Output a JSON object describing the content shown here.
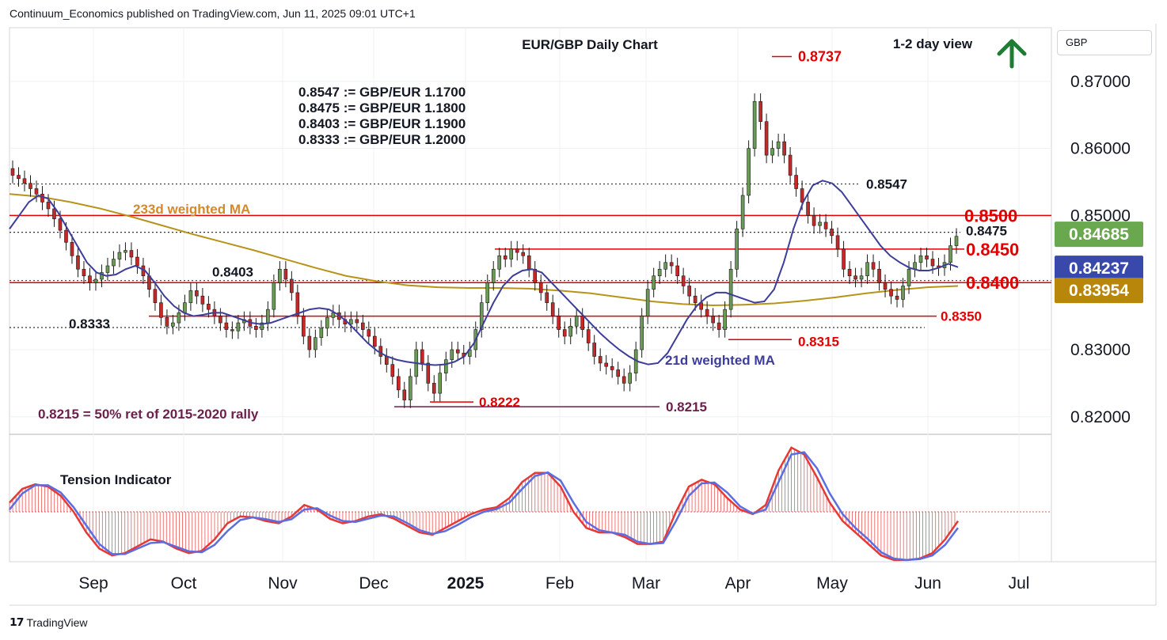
{
  "publisher": "Continuum_Economics published on TradingView.com, Jun 11, 2025 09:01 UTC+1",
  "brand": "TradingView",
  "currency_selector": "GBP",
  "colors": {
    "up": "#6a9a55",
    "down": "#c62828",
    "ma21": "#3d3d9a",
    "ma233": "#b8931a",
    "level": "#e00000",
    "dotted": "#333333",
    "tension_fill": "#e53935",
    "tension_fast": "#e53935",
    "tension_slow": "#5b6de0",
    "arrow": "#1e7d32"
  },
  "icons": {
    "view_arrow": "up-arrow-icon",
    "brand_logo": "tradingview-logo-icon"
  },
  "chart_data": {
    "type": "candlestick",
    "title": "EUR/GBP Daily Chart",
    "view_label": "1-2 day view",
    "x_ticks": [
      "Sep",
      "Oct",
      "Nov",
      "Dec",
      "2025",
      "Feb",
      "Mar",
      "Apr",
      "May",
      "Jun",
      "Jul"
    ],
    "y_ticks": [
      "0.87000",
      "0.86000",
      "0.85000",
      "0.83000",
      "0.82000"
    ],
    "ylim": [
      0.8175,
      0.878
    ],
    "conversions": [
      "0.8547 := GBP/EUR 1.1700",
      "0.8475 := GBP/EUR 1.1800",
      "0.8403 := GBP/EUR 1.1900",
      "0.8333 := GBP/EUR 1.2000"
    ],
    "resistance_levels": [
      {
        "label": "0.8737",
        "value": 0.8737
      },
      {
        "label": "0.8547",
        "value": 0.8547
      },
      {
        "label": "0.8500",
        "value": 0.85
      },
      {
        "label": "0.8475",
        "value": 0.8475
      },
      {
        "label": "0.8450",
        "value": 0.845
      }
    ],
    "support_levels": [
      {
        "label": "0.8403",
        "value": 0.8403
      },
      {
        "label": "0.8400",
        "value": 0.84
      },
      {
        "label": "0.8350",
        "value": 0.835
      },
      {
        "label": "0.8333",
        "value": 0.8333
      },
      {
        "label": "0.8315",
        "value": 0.8315
      },
      {
        "label": "0.8222",
        "value": 0.8222
      },
      {
        "label": "0.8215",
        "value": 0.8215
      }
    ],
    "price_badges": [
      {
        "label": "0.84685",
        "value": 0.84685,
        "color": "#6aa84f"
      },
      {
        "label": "0.84237",
        "value": 0.84237,
        "color": "#3949ab"
      },
      {
        "label": "0.83954",
        "value": 0.83954,
        "color": "#b8860b"
      }
    ],
    "annotations": [
      "233d weighted MA",
      "21d weighted MA",
      "0.8215 = 50% ret of 2015-2020 rally"
    ],
    "candles_close": [
      0.856,
      0.8555,
      0.8548,
      0.854,
      0.8532,
      0.852,
      0.851,
      0.8495,
      0.8478,
      0.846,
      0.844,
      0.842,
      0.841,
      0.84,
      0.8405,
      0.8415,
      0.8425,
      0.8435,
      0.8445,
      0.8448,
      0.8438,
      0.8425,
      0.841,
      0.839,
      0.837,
      0.8348,
      0.8335,
      0.834,
      0.8355,
      0.837,
      0.8388,
      0.838,
      0.8368,
      0.836,
      0.835,
      0.834,
      0.833,
      0.8328,
      0.834,
      0.8345,
      0.8335,
      0.833,
      0.834,
      0.836,
      0.84,
      0.842,
      0.8405,
      0.8385,
      0.835,
      0.832,
      0.83,
      0.8318,
      0.8332,
      0.8348,
      0.8355,
      0.8345,
      0.8338,
      0.8345,
      0.834,
      0.833,
      0.832,
      0.8305,
      0.829,
      0.8278,
      0.826,
      0.824,
      0.8225,
      0.826,
      0.83,
      0.828,
      0.825,
      0.8235,
      0.8265,
      0.8285,
      0.83,
      0.8295,
      0.829,
      0.83,
      0.833,
      0.837,
      0.84,
      0.842,
      0.844,
      0.8435,
      0.845,
      0.8445,
      0.844,
      0.842,
      0.84,
      0.8385,
      0.837,
      0.835,
      0.833,
      0.832,
      0.8335,
      0.835,
      0.833,
      0.831,
      0.829,
      0.828,
      0.8275,
      0.827,
      0.826,
      0.825,
      0.8265,
      0.83,
      0.835,
      0.839,
      0.841,
      0.842,
      0.843,
      0.8425,
      0.841,
      0.8395,
      0.838,
      0.837,
      0.836,
      0.835,
      0.834,
      0.833,
      0.836,
      0.842,
      0.848,
      0.853,
      0.86,
      0.867,
      0.864,
      0.859,
      0.86,
      0.861,
      0.859,
      0.856,
      0.854,
      0.852,
      0.85,
      0.8485,
      0.849,
      0.848,
      0.847,
      0.845,
      0.842,
      0.841,
      0.8405,
      0.841,
      0.843,
      0.842,
      0.84,
      0.839,
      0.838,
      0.8375,
      0.8395,
      0.842,
      0.843,
      0.844,
      0.8435,
      0.8425,
      0.8422,
      0.843,
      0.8455,
      0.8469
    ],
    "candles_open": [
      0.857,
      0.856,
      0.8555,
      0.8548,
      0.854,
      0.8532,
      0.852,
      0.851,
      0.8495,
      0.8478,
      0.846,
      0.844,
      0.842,
      0.841,
      0.84,
      0.8405,
      0.8415,
      0.8425,
      0.8435,
      0.8445,
      0.8448,
      0.8438,
      0.8425,
      0.841,
      0.839,
      0.837,
      0.8348,
      0.8335,
      0.834,
      0.8355,
      0.837,
      0.8388,
      0.838,
      0.8368,
      0.836,
      0.835,
      0.834,
      0.833,
      0.8328,
      0.834,
      0.8345,
      0.8335,
      0.833,
      0.834,
      0.836,
      0.84,
      0.842,
      0.8405,
      0.8385,
      0.835,
      0.832,
      0.83,
      0.8318,
      0.8332,
      0.8348,
      0.8355,
      0.8345,
      0.8338,
      0.8345,
      0.834,
      0.833,
      0.832,
      0.8305,
      0.829,
      0.8278,
      0.826,
      0.824,
      0.8225,
      0.826,
      0.83,
      0.828,
      0.825,
      0.8235,
      0.8265,
      0.8285,
      0.83,
      0.8295,
      0.829,
      0.83,
      0.833,
      0.837,
      0.84,
      0.842,
      0.844,
      0.8435,
      0.845,
      0.8445,
      0.844,
      0.842,
      0.84,
      0.8385,
      0.837,
      0.835,
      0.833,
      0.832,
      0.8335,
      0.835,
      0.833,
      0.831,
      0.829,
      0.828,
      0.8275,
      0.827,
      0.826,
      0.825,
      0.8265,
      0.83,
      0.835,
      0.839,
      0.841,
      0.842,
      0.843,
      0.8425,
      0.841,
      0.8395,
      0.838,
      0.837,
      0.836,
      0.835,
      0.834,
      0.833,
      0.836,
      0.842,
      0.848,
      0.853,
      0.86,
      0.867,
      0.864,
      0.859,
      0.86,
      0.861,
      0.859,
      0.856,
      0.854,
      0.852,
      0.85,
      0.8485,
      0.849,
      0.848,
      0.847,
      0.845,
      0.842,
      0.841,
      0.8405,
      0.841,
      0.843,
      0.842,
      0.84,
      0.839,
      0.838,
      0.8375,
      0.8395,
      0.842,
      0.843,
      0.844,
      0.8435,
      0.8425,
      0.8422,
      0.843,
      0.8455
    ],
    "ma21_weighted": [
      0.848,
      0.85,
      0.852,
      0.853,
      0.8525,
      0.8505,
      0.848,
      0.8455,
      0.843,
      0.8415,
      0.841,
      0.8412,
      0.842,
      0.8425,
      0.8418,
      0.84,
      0.838,
      0.8365,
      0.8355,
      0.835,
      0.8352,
      0.8355,
      0.8355,
      0.835,
      0.8345,
      0.834,
      0.8338,
      0.834,
      0.8345,
      0.835,
      0.8355,
      0.836,
      0.8362,
      0.836,
      0.8352,
      0.834,
      0.8325,
      0.831,
      0.8298,
      0.829,
      0.8285,
      0.8282,
      0.828,
      0.8278,
      0.8277,
      0.8278,
      0.8282,
      0.829,
      0.831,
      0.834,
      0.837,
      0.8395,
      0.841,
      0.8418,
      0.842,
      0.8415,
      0.84,
      0.8385,
      0.837,
      0.8355,
      0.834,
      0.8325,
      0.8312,
      0.83,
      0.829,
      0.8282,
      0.8278,
      0.828,
      0.8295,
      0.832,
      0.8345,
      0.8365,
      0.8378,
      0.8385,
      0.8385,
      0.838,
      0.8375,
      0.837,
      0.8372,
      0.839,
      0.843,
      0.848,
      0.852,
      0.8545,
      0.8552,
      0.8548,
      0.8535,
      0.8515,
      0.8495,
      0.8475,
      0.8455,
      0.844,
      0.843,
      0.8422,
      0.8418,
      0.8418,
      0.8422,
      0.8428,
      0.8423
    ],
    "ma233_weighted": [
      0.8532,
      0.8528,
      0.852,
      0.851,
      0.8498,
      0.8485,
      0.8472,
      0.846,
      0.8448,
      0.8435,
      0.8422,
      0.841,
      0.8402,
      0.8396,
      0.8393,
      0.8392,
      0.8392,
      0.8391,
      0.8388,
      0.8384,
      0.8378,
      0.8372,
      0.8368,
      0.8366,
      0.8367,
      0.8369,
      0.8373,
      0.8378,
      0.8384,
      0.8389,
      0.8393,
      0.8395
    ],
    "tension_indicator": {
      "title": "Tension Indicator",
      "fast": [
        0.2,
        0.5,
        0.6,
        0.55,
        0.35,
        0.0,
        -0.45,
        -0.8,
        -0.95,
        -0.9,
        -0.75,
        -0.6,
        -0.65,
        -0.8,
        -0.9,
        -0.85,
        -0.6,
        -0.25,
        -0.1,
        -0.12,
        -0.2,
        -0.25,
        -0.1,
        0.15,
        0.05,
        -0.15,
        -0.25,
        -0.2,
        -0.1,
        -0.05,
        -0.15,
        -0.3,
        -0.45,
        -0.5,
        -0.35,
        -0.2,
        -0.05,
        0.05,
        0.1,
        0.3,
        0.65,
        0.85,
        0.85,
        0.55,
        0.0,
        -0.35,
        -0.45,
        -0.45,
        -0.55,
        -0.7,
        -0.7,
        -0.65,
        0.0,
        0.55,
        0.7,
        0.6,
        0.3,
        0.05,
        -0.05,
        0.15,
        0.9,
        1.4,
        1.25,
        0.75,
        0.2,
        -0.2,
        -0.45,
        -0.7,
        -0.95,
        -1.05,
        -1.05,
        -1.02,
        -0.9,
        -0.6,
        -0.2
      ],
      "slow": [
        0.05,
        0.4,
        0.58,
        0.58,
        0.42,
        0.1,
        -0.3,
        -0.7,
        -0.92,
        -0.92,
        -0.8,
        -0.68,
        -0.66,
        -0.76,
        -0.86,
        -0.88,
        -0.72,
        -0.42,
        -0.18,
        -0.12,
        -0.16,
        -0.22,
        -0.16,
        0.05,
        0.08,
        -0.08,
        -0.2,
        -0.22,
        -0.15,
        -0.08,
        -0.1,
        -0.24,
        -0.4,
        -0.48,
        -0.42,
        -0.28,
        -0.12,
        0.0,
        0.06,
        0.2,
        0.5,
        0.78,
        0.86,
        0.68,
        0.2,
        -0.22,
        -0.4,
        -0.45,
        -0.5,
        -0.65,
        -0.7,
        -0.68,
        -0.2,
        0.35,
        0.62,
        0.64,
        0.42,
        0.12,
        -0.04,
        0.05,
        0.65,
        1.25,
        1.3,
        0.95,
        0.4,
        -0.05,
        -0.35,
        -0.6,
        -0.88,
        -1.02,
        -1.05,
        -1.03,
        -0.95,
        -0.72,
        -0.35
      ]
    }
  }
}
